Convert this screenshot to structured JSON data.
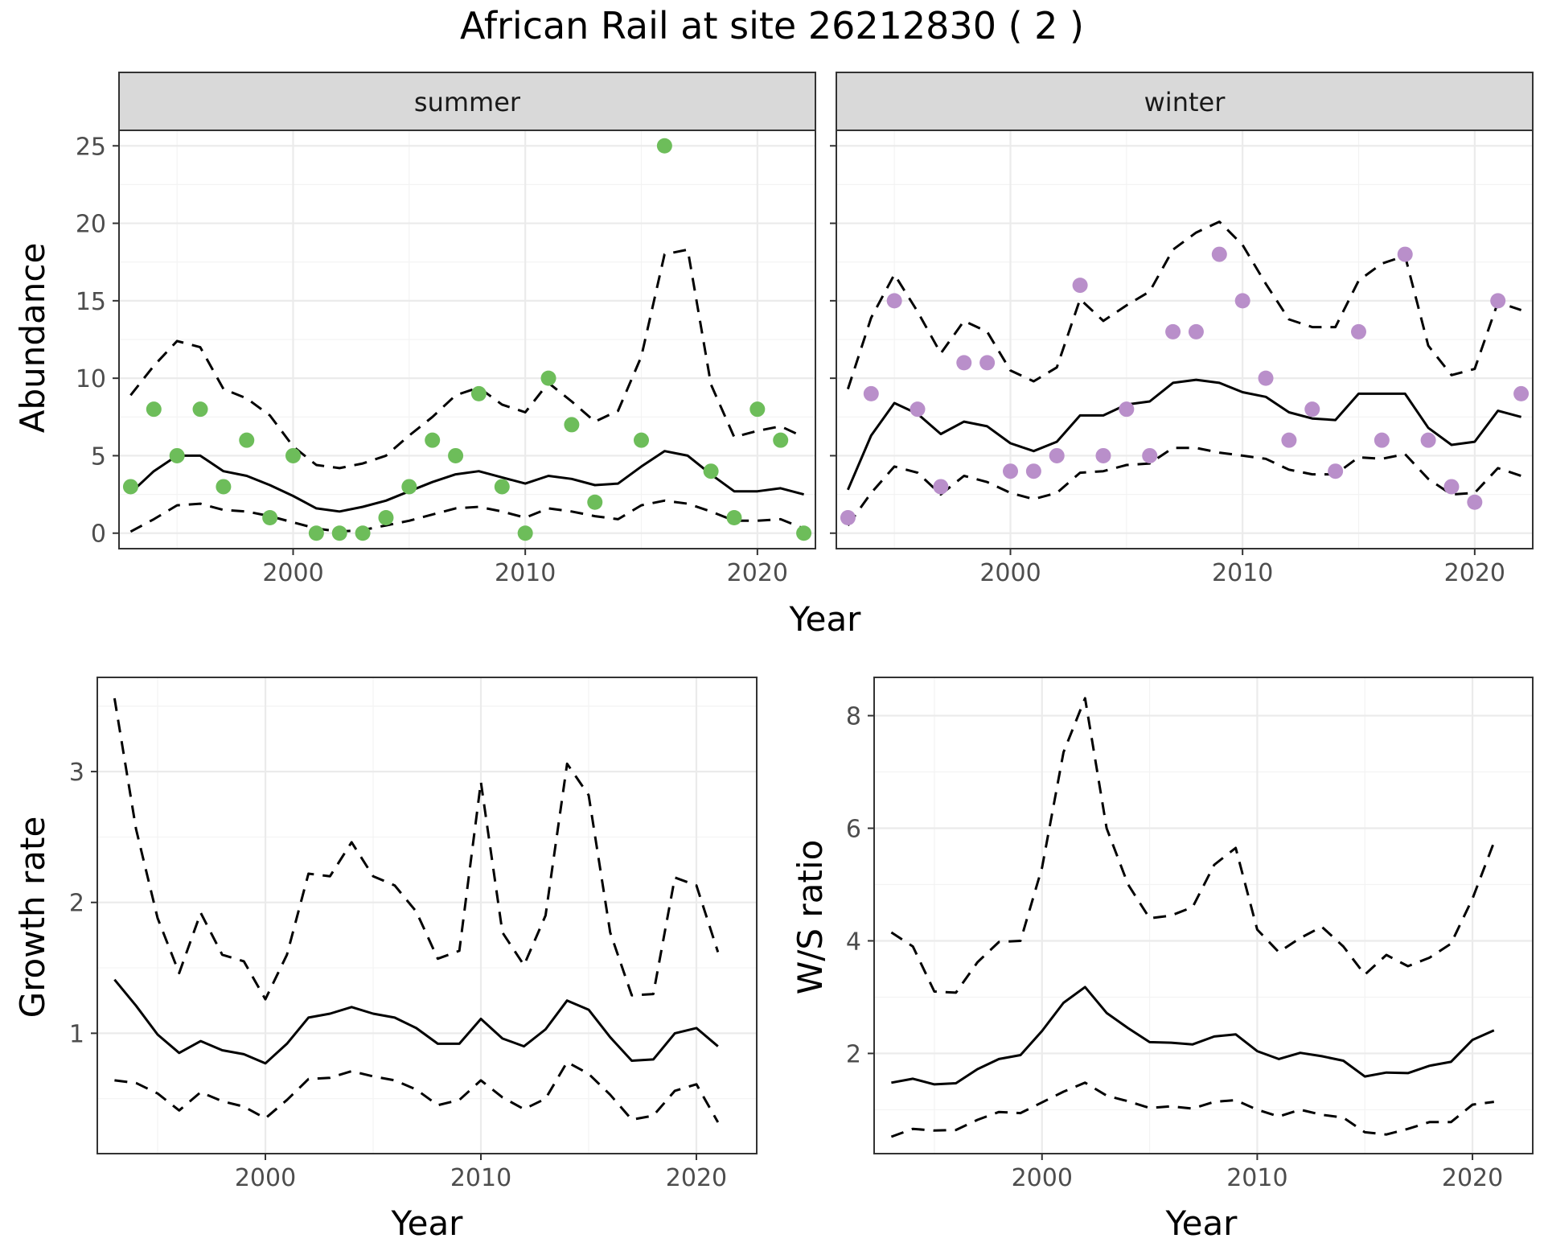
{
  "title": "African Rail at site 26212830 ( 2 )",
  "colors": {
    "summer_points": "#6dbd5a",
    "winter_points": "#b98fca"
  },
  "chart_data": [
    {
      "type": "line",
      "panel": "summer",
      "ylabel": "Abundance",
      "xlabel": "Year",
      "xlim": [
        1992.5,
        2022.5
      ],
      "ylim": [
        -1,
        26
      ],
      "xticks": [
        2000,
        2010,
        2020
      ],
      "yticks": [
        0,
        5,
        10,
        15,
        20,
        25
      ],
      "x": [
        1993,
        1994,
        1995,
        1996,
        1997,
        1998,
        1999,
        2000,
        2001,
        2002,
        2003,
        2004,
        2005,
        2006,
        2007,
        2008,
        2009,
        2010,
        2011,
        2012,
        2013,
        2014,
        2015,
        2016,
        2017,
        2018,
        2019,
        2020,
        2021,
        2022
      ],
      "points": [
        3,
        8,
        5,
        8,
        3,
        6,
        1,
        5,
        0,
        0,
        0,
        1,
        3,
        6,
        5,
        9,
        3,
        0,
        10,
        7,
        2,
        null,
        6,
        25,
        null,
        4,
        1,
        8,
        6,
        0
      ],
      "series": [
        {
          "role": "mean",
          "values": [
            2.6,
            4.0,
            5.0,
            5.0,
            4.0,
            3.7,
            3.1,
            2.4,
            1.6,
            1.4,
            1.7,
            2.1,
            2.7,
            3.3,
            3.8,
            4.0,
            3.6,
            3.2,
            3.7,
            3.5,
            3.1,
            3.2,
            4.3,
            5.3,
            5.0,
            3.8,
            2.7,
            2.7,
            2.9,
            2.5
          ]
        },
        {
          "role": "upper",
          "values": [
            8.9,
            10.8,
            12.4,
            12.0,
            9.3,
            8.7,
            7.6,
            5.6,
            4.4,
            4.2,
            4.5,
            5.0,
            6.3,
            7.5,
            8.9,
            9.4,
            8.3,
            7.8,
            9.7,
            8.5,
            7.2,
            7.9,
            11.4,
            18.0,
            18.3,
            9.6,
            6.2,
            6.6,
            6.9,
            6.2
          ]
        },
        {
          "role": "lower",
          "values": [
            0.1,
            0.9,
            1.8,
            1.9,
            1.5,
            1.4,
            1.1,
            0.7,
            0.3,
            0.1,
            0.2,
            0.5,
            0.8,
            1.2,
            1.6,
            1.7,
            1.4,
            1.0,
            1.6,
            1.4,
            1.1,
            0.9,
            1.8,
            2.1,
            1.9,
            1.4,
            0.8,
            0.8,
            0.9,
            0.3
          ]
        }
      ]
    },
    {
      "type": "line",
      "panel": "winter",
      "xlabel": "Year",
      "xlim": [
        1992.5,
        2022.5
      ],
      "ylim": [
        -1,
        26
      ],
      "xticks": [
        2000,
        2010,
        2020
      ],
      "yticks": [
        0,
        5,
        10,
        15,
        20,
        25
      ],
      "x": [
        1993,
        1994,
        1995,
        1996,
        1997,
        1998,
        1999,
        2000,
        2001,
        2002,
        2003,
        2004,
        2005,
        2006,
        2007,
        2008,
        2009,
        2010,
        2011,
        2012,
        2013,
        2014,
        2015,
        2016,
        2017,
        2018,
        2019,
        2020,
        2021,
        2022
      ],
      "points": [
        1,
        9,
        15,
        8,
        3,
        11,
        11,
        4,
        4,
        5,
        16,
        5,
        8,
        5,
        13,
        13,
        18,
        15,
        10,
        6,
        8,
        4,
        13,
        6,
        18,
        6,
        3,
        2,
        15,
        9
      ],
      "series": [
        {
          "role": "mean",
          "values": [
            2.8,
            6.3,
            8.4,
            7.7,
            6.4,
            7.2,
            6.9,
            5.8,
            5.3,
            5.9,
            7.6,
            7.6,
            8.3,
            8.5,
            9.7,
            9.9,
            9.7,
            9.1,
            8.8,
            7.8,
            7.4,
            7.3,
            9.0,
            9.0,
            9.0,
            6.8,
            5.7,
            5.9,
            7.9,
            7.5
          ]
        },
        {
          "role": "upper",
          "values": [
            9.3,
            13.9,
            16.7,
            14.3,
            11.6,
            13.7,
            13.0,
            10.5,
            9.8,
            10.7,
            15.1,
            13.7,
            14.7,
            15.6,
            18.3,
            19.4,
            20.1,
            18.6,
            16.1,
            13.8,
            13.3,
            13.3,
            16.3,
            17.4,
            17.9,
            12.1,
            10.2,
            10.6,
            14.9,
            14.4
          ]
        },
        {
          "role": "lower",
          "values": [
            0.5,
            2.6,
            4.3,
            3.9,
            2.5,
            3.7,
            3.3,
            2.6,
            2.2,
            2.6,
            3.9,
            4.0,
            4.4,
            4.5,
            5.5,
            5.5,
            5.2,
            5.0,
            4.8,
            4.1,
            3.8,
            3.8,
            4.9,
            4.8,
            5.1,
            3.5,
            2.5,
            2.6,
            4.2,
            3.7
          ]
        }
      ]
    },
    {
      "type": "line",
      "panel": "growth",
      "ylabel": "Growth rate",
      "xlabel": "Year",
      "xlim": [
        1992.2,
        2022.8
      ],
      "ylim": [
        0.08,
        3.72
      ],
      "xticks": [
        2000,
        2010,
        2020
      ],
      "yticks": [
        1,
        2,
        3
      ],
      "x": [
        1993,
        1994,
        1995,
        1996,
        1997,
        1998,
        1999,
        2000,
        2001,
        2002,
        2003,
        2004,
        2005,
        2006,
        2007,
        2008,
        2009,
        2010,
        2011,
        2012,
        2013,
        2014,
        2015,
        2016,
        2017,
        2018,
        2019,
        2020,
        2021
      ],
      "series": [
        {
          "role": "mean",
          "values": [
            1.41,
            1.21,
            0.99,
            0.85,
            0.94,
            0.87,
            0.84,
            0.77,
            0.92,
            1.12,
            1.15,
            1.2,
            1.15,
            1.12,
            1.04,
            0.92,
            0.92,
            1.11,
            0.96,
            0.9,
            1.03,
            1.25,
            1.18,
            0.97,
            0.79,
            0.8,
            1.0,
            1.04,
            0.9
          ]
        },
        {
          "role": "upper",
          "values": [
            3.56,
            2.56,
            1.88,
            1.46,
            1.92,
            1.6,
            1.55,
            1.26,
            1.6,
            2.22,
            2.2,
            2.46,
            2.2,
            2.13,
            1.93,
            1.57,
            1.63,
            2.92,
            1.77,
            1.52,
            1.9,
            3.06,
            2.82,
            1.77,
            1.29,
            1.3,
            2.19,
            2.13,
            1.62
          ]
        },
        {
          "role": "lower",
          "values": [
            0.64,
            0.62,
            0.54,
            0.41,
            0.55,
            0.48,
            0.44,
            0.35,
            0.49,
            0.65,
            0.66,
            0.71,
            0.67,
            0.64,
            0.57,
            0.45,
            0.49,
            0.64,
            0.51,
            0.42,
            0.5,
            0.78,
            0.69,
            0.53,
            0.34,
            0.37,
            0.56,
            0.61,
            0.32
          ]
        }
      ]
    },
    {
      "type": "line",
      "panel": "ratio",
      "ylabel": "W/S ratio",
      "xlabel": "Year",
      "xlim": [
        1992.2,
        2022.8
      ],
      "ylim": [
        0.22,
        8.68
      ],
      "xticks": [
        2000,
        2010,
        2020
      ],
      "yticks": [
        2,
        4,
        6,
        8
      ],
      "x": [
        1993,
        1994,
        1995,
        1996,
        1997,
        1998,
        1999,
        2000,
        2001,
        2002,
        2003,
        2004,
        2005,
        2006,
        2007,
        2008,
        2009,
        2010,
        2011,
        2012,
        2013,
        2014,
        2015,
        2016,
        2017,
        2018,
        2019,
        2020,
        2021
      ],
      "series": [
        {
          "role": "mean",
          "values": [
            1.48,
            1.55,
            1.45,
            1.47,
            1.72,
            1.9,
            1.97,
            2.4,
            2.9,
            3.18,
            2.72,
            2.45,
            2.2,
            2.19,
            2.16,
            2.3,
            2.34,
            2.04,
            1.9,
            2.01,
            1.95,
            1.87,
            1.59,
            1.66,
            1.65,
            1.78,
            1.85,
            2.24,
            2.41
          ]
        },
        {
          "role": "upper",
          "values": [
            4.15,
            3.9,
            3.1,
            3.08,
            3.62,
            3.98,
            4.0,
            5.3,
            7.35,
            8.31,
            6.0,
            5.0,
            4.4,
            4.45,
            4.6,
            5.35,
            5.65,
            4.2,
            3.8,
            4.05,
            4.25,
            3.9,
            3.4,
            3.75,
            3.55,
            3.7,
            3.95,
            4.75,
            5.75
          ]
        },
        {
          "role": "lower",
          "values": [
            0.52,
            0.66,
            0.63,
            0.64,
            0.82,
            0.96,
            0.94,
            1.13,
            1.32,
            1.48,
            1.25,
            1.15,
            1.03,
            1.06,
            1.02,
            1.14,
            1.17,
            1.0,
            0.88,
            1.0,
            0.91,
            0.86,
            0.6,
            0.56,
            0.66,
            0.78,
            0.78,
            1.09,
            1.14
          ]
        }
      ]
    }
  ],
  "strip_labels": [
    "summer",
    "winter"
  ]
}
